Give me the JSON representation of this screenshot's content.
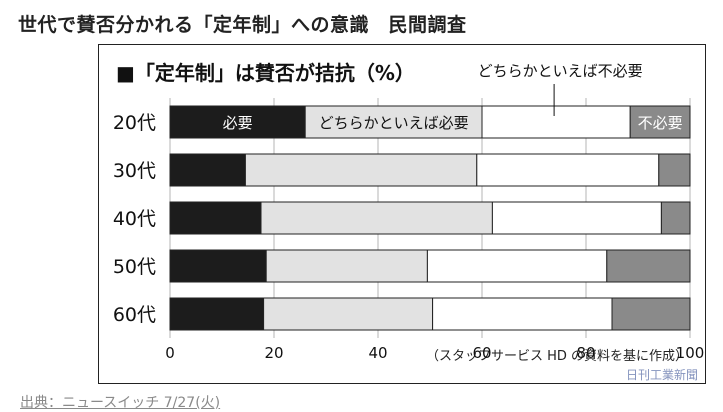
{
  "page_title": "世代で賛否分かれる「定年制」への意識　民間調査",
  "source_link": "出典：ニュースイッチ 7/27(火)",
  "watermark": "日刊工業新聞",
  "colors": {
    "necessary": "#1c1c1c",
    "somewhat_necessary": "#e2e2e2",
    "somewhat_unnecessary": "#ffffff",
    "unnecessary": "#8a8a8a"
  },
  "chart_data": {
    "type": "bar",
    "orientation": "horizontal",
    "stacked": true,
    "title": "■「定年制」は賛否が拮抗（%）",
    "source_note": "（スタッフサービス HD の資料を基に作成）",
    "categories": [
      "20代",
      "30代",
      "40代",
      "50代",
      "60代"
    ],
    "series": [
      {
        "name": "必要",
        "values": [
          26,
          14.5,
          17.5,
          18.5,
          18
        ]
      },
      {
        "name": "どちらかといえば必要",
        "values": [
          34,
          44.5,
          44.5,
          31,
          32.5
        ]
      },
      {
        "name": "どちらかといえば不必要",
        "values": [
          28.5,
          35,
          32.5,
          34.5,
          34.5
        ]
      },
      {
        "name": "不必要",
        "values": [
          11.5,
          6,
          5.5,
          16,
          15
        ]
      }
    ],
    "xlim": [
      0,
      100
    ],
    "xticks": [
      "0",
      "20",
      "40",
      "60",
      "80",
      "100"
    ],
    "grid": true,
    "legend": "inline labels on 20代 bar; どちらかといえば不必要 label above bar with pointer"
  }
}
